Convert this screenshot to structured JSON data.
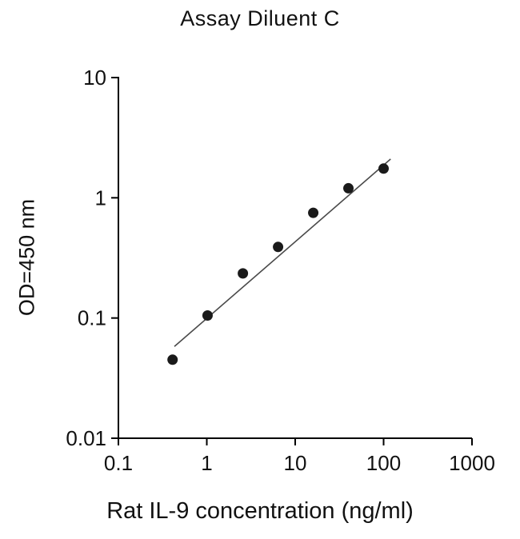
{
  "chart_data": {
    "type": "scatter",
    "title": "Assay Diluent C",
    "xlabel": "Rat IL-9 concentration (ng/ml)",
    "ylabel": "OD=450 nm",
    "xscale": "log",
    "yscale": "log",
    "xlim": [
      0.1,
      1000
    ],
    "ylim": [
      0.01,
      10
    ],
    "x_ticks": [
      "0.1",
      "1",
      "10",
      "100",
      "1000"
    ],
    "y_ticks": [
      "10",
      "1",
      "0.1",
      "0.01"
    ],
    "grid": false,
    "legend": false,
    "points": [
      {
        "x": 0.41,
        "y": 0.045
      },
      {
        "x": 1.02,
        "y": 0.105
      },
      {
        "x": 2.56,
        "y": 0.235
      },
      {
        "x": 6.4,
        "y": 0.39
      },
      {
        "x": 16,
        "y": 0.75
      },
      {
        "x": 40,
        "y": 1.2
      },
      {
        "x": 100,
        "y": 1.75
      }
    ],
    "fit_line": {
      "x1": 0.43,
      "y1": 0.058,
      "x2": 120,
      "y2": 2.1
    },
    "marker_color": "#1a1a1a",
    "line_color": "#4a4a4a",
    "axis_color": "#000000"
  }
}
